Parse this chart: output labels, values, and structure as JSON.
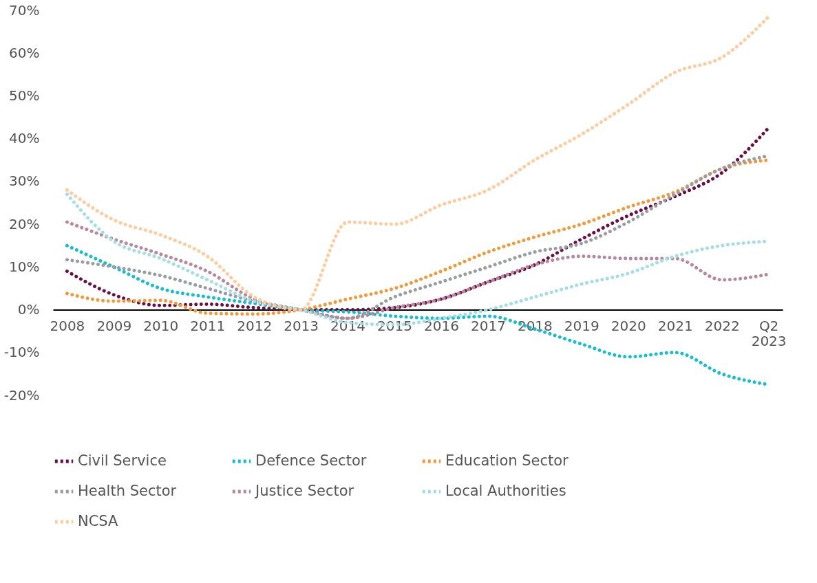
{
  "chart_data": {
    "type": "line",
    "categories": [
      "2008",
      "2009",
      "2010",
      "2011",
      "2012",
      "2013",
      "2014",
      "2015",
      "2016",
      "2017",
      "2018",
      "2019",
      "2020",
      "2021",
      "2022",
      "Q2\n2023"
    ],
    "series": [
      {
        "name": "Civil Service",
        "color": "#6a0f45",
        "values": [
          9,
          3.5,
          1,
          1.3,
          0.5,
          0,
          0,
          0.5,
          2.5,
          6.5,
          10.5,
          16.5,
          22,
          26.5,
          32,
          42.5
        ]
      },
      {
        "name": "Defence Sector",
        "color": "#17becf",
        "values": [
          15,
          10,
          5,
          3,
          1.5,
          0,
          -0.5,
          -1.5,
          -2,
          -1.5,
          -4.5,
          -8,
          -11,
          -10,
          -15,
          -17.5
        ]
      },
      {
        "name": "Education Sector",
        "color": "#f09a3a",
        "values": [
          3.8,
          2,
          2.2,
          -0.8,
          -1,
          0,
          2.5,
          5,
          9,
          13.5,
          17,
          20,
          24,
          27.5,
          33,
          35
        ]
      },
      {
        "name": "Health Sector",
        "color": "#9a9ca3",
        "values": [
          11.7,
          10,
          8,
          5,
          2,
          0,
          -2,
          3,
          6.5,
          10,
          13.5,
          15.5,
          20.5,
          27,
          33,
          36
        ]
      },
      {
        "name": "Justice Sector",
        "color": "#b8879c",
        "values": [
          20.5,
          16.5,
          13,
          9,
          2.5,
          0,
          -2,
          0.5,
          2.5,
          6.5,
          10.5,
          12.5,
          12,
          12,
          7,
          8.3
        ]
      },
      {
        "name": "Local Authorities",
        "color": "#a4dde6",
        "values": [
          27,
          16,
          12,
          7,
          2,
          0,
          -3,
          -3.5,
          -2,
          0,
          3,
          6,
          8.5,
          12.5,
          15,
          16
        ]
      },
      {
        "name": "NCSA",
        "color": "#ffcb9c",
        "values": [
          28,
          21,
          17.5,
          12.5,
          3,
          0,
          20.5,
          20,
          24.5,
          28,
          35,
          41,
          48,
          55.5,
          59,
          68.5
        ]
      }
    ],
    "ylim": [
      -20,
      70
    ],
    "yticks": [
      {
        "value": -20,
        "label": "-20%"
      },
      {
        "value": -10,
        "label": "-10%"
      },
      {
        "value": 0,
        "label": "0%"
      },
      {
        "value": 10,
        "label": "10%"
      },
      {
        "value": 20,
        "label": "20%"
      },
      {
        "value": 30,
        "label": "30%"
      },
      {
        "value": 40,
        "label": "40%"
      },
      {
        "value": 50,
        "label": "50%"
      },
      {
        "value": 60,
        "label": "60%"
      },
      {
        "value": 70,
        "label": "70%"
      }
    ],
    "grid": false,
    "legend": "bottom",
    "marker": "none",
    "line_style": "dotted"
  }
}
